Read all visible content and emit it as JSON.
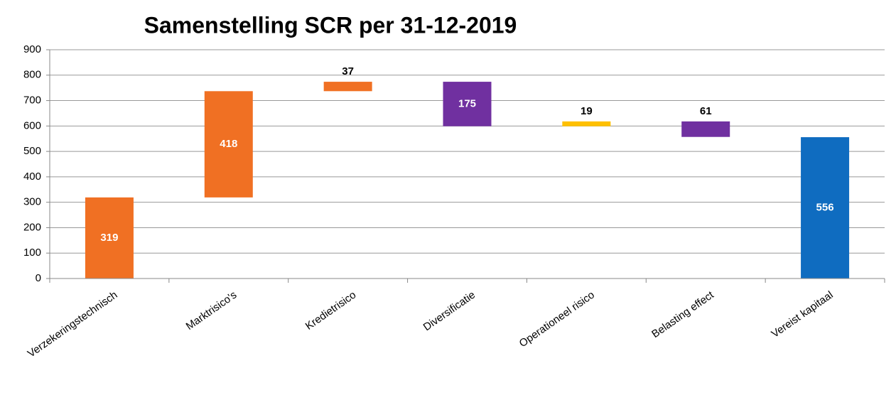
{
  "chart_data": {
    "type": "waterfall",
    "title": "Samenstelling SCR per 31-12-2019",
    "categories": [
      "Verzekeringstechnisch",
      "Marktrisico's",
      "Kredietrisico",
      "Diversificatie",
      "Operationeel risico",
      "Belasting effect",
      "Vereist kapitaal"
    ],
    "values": [
      319,
      418,
      37,
      -175,
      19,
      -61,
      556
    ],
    "value_labels": [
      "319",
      "418",
      "37",
      "175",
      "19",
      "61",
      "556"
    ],
    "totals": [
      false,
      false,
      false,
      false,
      false,
      false,
      true
    ],
    "colors": [
      "#f07023",
      "#f07023",
      "#f07023",
      "#7030a0",
      "#ffc000",
      "#7030a0",
      "#0f6cc0"
    ],
    "ylim": [
      0,
      900
    ],
    "yticks": [
      0,
      100,
      200,
      300,
      400,
      500,
      600,
      700,
      800,
      900
    ],
    "grid": true
  }
}
